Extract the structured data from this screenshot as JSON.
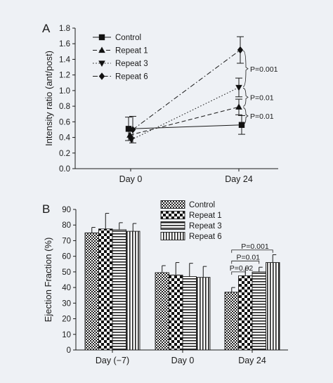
{
  "chart_data": [
    {
      "panel": "A",
      "type": "line",
      "ylabel": "Intensity ratio (ant/post)",
      "categories": [
        "Day 0",
        "Day 24"
      ],
      "ylim": [
        0,
        1.8
      ],
      "yticks": [
        "0.0",
        "0.2",
        "0.4",
        "0.6",
        "0.8",
        "1.0",
        "1.2",
        "1.4",
        "1.6",
        "1.8"
      ],
      "series": [
        {
          "name": "Control",
          "marker": "square",
          "dash": "solid",
          "values": [
            0.51,
            0.56
          ],
          "errors": [
            0.15,
            0.12
          ]
        },
        {
          "name": "Repeat 1",
          "marker": "triangle-up",
          "dash": "dashed",
          "values": [
            0.43,
            0.79
          ],
          "errors": [
            0.0,
            0.1
          ]
        },
        {
          "name": "Repeat 3",
          "marker": "triangle-down",
          "dash": "dotted",
          "values": [
            0.37,
            1.04
          ],
          "errors": [
            0.0,
            0.12
          ]
        },
        {
          "name": "Repeat 6",
          "marker": "diamond",
          "dash": "dashdot",
          "values": [
            0.5,
            1.52
          ],
          "errors": [
            0.17,
            0.17
          ]
        }
      ],
      "annotations": [
        "P=0.001",
        "P=0.01",
        "P=0.01"
      ]
    },
    {
      "panel": "B",
      "type": "bar",
      "ylabel": "Ejection Fraction (%)",
      "categories": [
        "Day (−7)",
        "Day  0",
        "Day 24"
      ],
      "ylim": [
        0,
        90
      ],
      "yticks": [
        "0",
        "10",
        "20",
        "30",
        "40",
        "50",
        "60",
        "70",
        "80",
        "90"
      ],
      "series": [
        {
          "name": "Control",
          "pattern": "fine-check",
          "values": [
            75,
            49.5,
            37
          ],
          "errors": [
            3.5,
            4.5,
            3
          ]
        },
        {
          "name": "Repeat 1",
          "pattern": "checker",
          "values": [
            77.5,
            48,
            47.5
          ],
          "errors": [
            10,
            8,
            5
          ]
        },
        {
          "name": "Repeat 3",
          "pattern": "horizontal",
          "values": [
            77,
            47,
            50
          ],
          "errors": [
            4.5,
            8.5,
            3
          ]
        },
        {
          "name": "Repeat 6",
          "pattern": "vertical",
          "values": [
            76,
            46.5,
            56
          ],
          "errors": [
            5,
            7,
            5
          ]
        }
      ],
      "annotations": [
        "P=0.001",
        "P=0.01",
        "P=0.02"
      ]
    }
  ]
}
